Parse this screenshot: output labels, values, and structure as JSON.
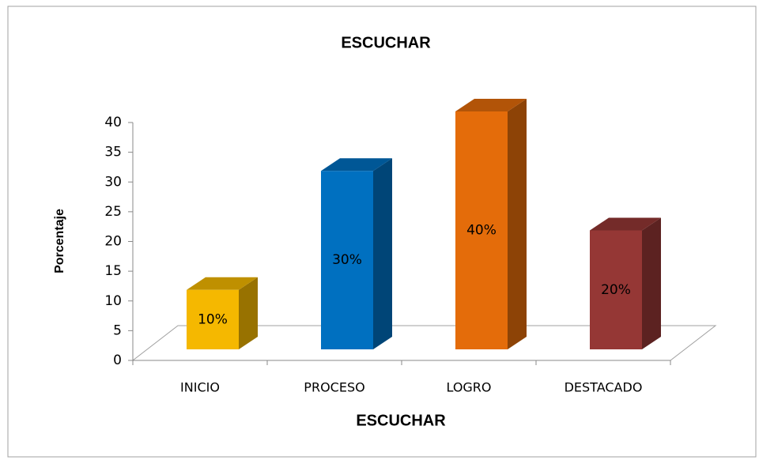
{
  "chart_data": {
    "type": "bar3d",
    "title": "ESCUCHAR",
    "x_label": "ESCUCHAR",
    "y_label": "Porcentaje",
    "categories": [
      "INICIO",
      "PROCESO",
      "LOGRO",
      "DESTACADO"
    ],
    "values": [
      10,
      30,
      40,
      20
    ],
    "value_labels": [
      "10%",
      "30%",
      "40%",
      "20%"
    ],
    "colors": [
      "#f5b800",
      "#0070c0",
      "#e46c0a",
      "#953735"
    ],
    "ylim": [
      0,
      40
    ],
    "yticks": [
      0,
      5,
      10,
      15,
      20,
      25,
      30,
      35,
      40
    ],
    "grid": false
  }
}
